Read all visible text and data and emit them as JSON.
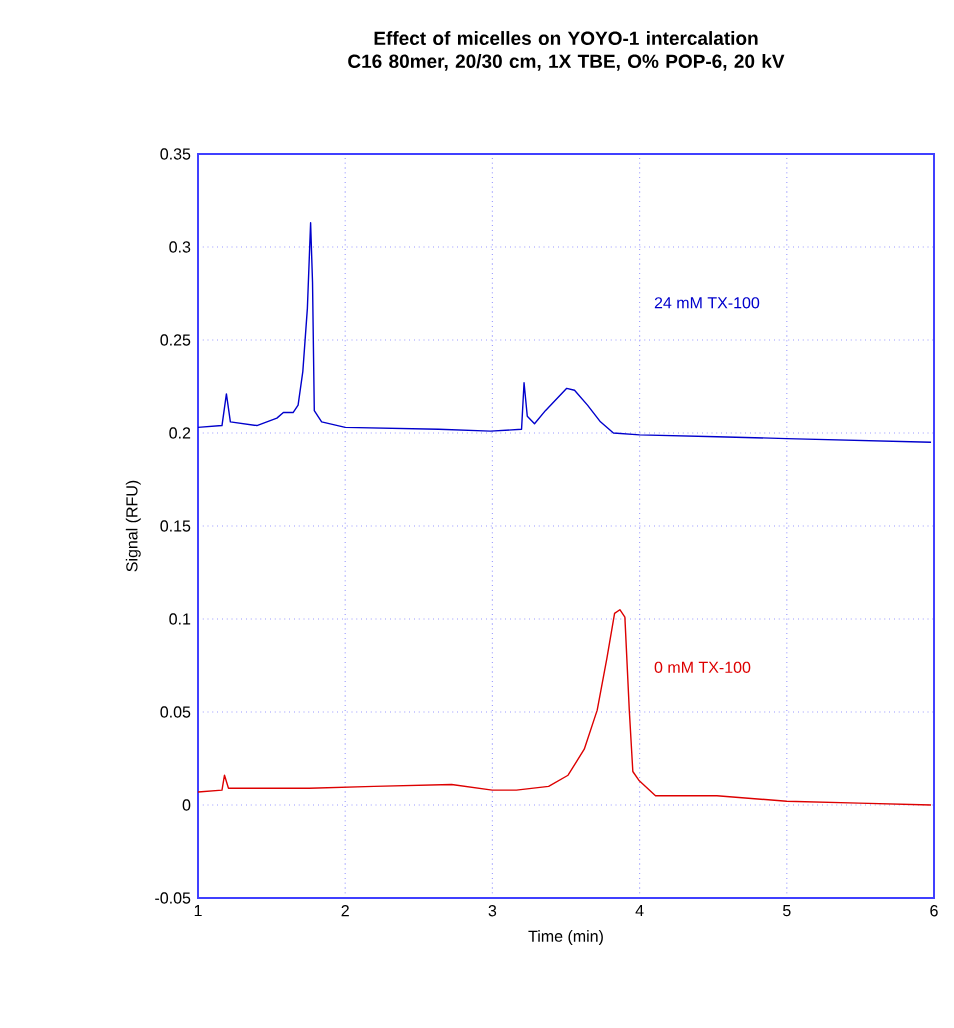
{
  "chart_data": {
    "type": "line",
    "title": "Effect of micelles on YOYO-1 intercalation",
    "subtitle": "C16 80mer, 20/30 cm, 1X TBE, O% POP-6, 20 kV",
    "xlabel": "Time (min)",
    "ylabel": "Signal (RFU)",
    "xlim": [
      1,
      6
    ],
    "ylim": [
      -0.05,
      0.35
    ],
    "xticks": [
      1,
      2,
      3,
      4,
      5,
      6
    ],
    "yticks": [
      -0.05,
      0,
      0.05,
      0.1,
      0.15,
      0.2,
      0.25,
      0.3,
      0.35
    ],
    "grid": true,
    "marker": "none",
    "line_style": "solid",
    "series": [
      {
        "name": "24 mM TX-100",
        "color": "#0000cc",
        "x": [
          1.0,
          1.163,
          1.193,
          1.22,
          1.4,
          1.536,
          1.58,
          1.646,
          1.68,
          1.712,
          1.743,
          1.765,
          1.778,
          1.79,
          1.84,
          2.0,
          2.635,
          2.987,
          3.198,
          3.215,
          3.237,
          3.286,
          3.36,
          3.505,
          3.558,
          3.646,
          3.734,
          3.822,
          4.0,
          4.525,
          5.0,
          5.98
        ],
        "values": [
          0.203,
          0.204,
          0.221,
          0.206,
          0.204,
          0.208,
          0.211,
          0.211,
          0.215,
          0.233,
          0.267,
          0.313,
          0.281,
          0.212,
          0.206,
          0.203,
          0.202,
          0.201,
          0.202,
          0.227,
          0.209,
          0.205,
          0.212,
          0.224,
          0.223,
          0.215,
          0.206,
          0.2,
          0.199,
          0.198,
          0.197,
          0.195
        ]
      },
      {
        "name": "0 mM TX-100",
        "color": "#dd0000",
        "x": [
          1.0,
          1.163,
          1.18,
          1.207,
          1.756,
          2.196,
          2.723,
          2.999,
          3.163,
          3.382,
          3.514,
          3.624,
          3.712,
          3.778,
          3.83,
          3.866,
          3.9,
          3.93,
          3.954,
          3.998,
          4.108,
          4.525,
          5.0,
          5.49,
          5.98
        ],
        "values": [
          0.007,
          0.008,
          0.016,
          0.009,
          0.009,
          0.01,
          0.011,
          0.008,
          0.008,
          0.01,
          0.016,
          0.03,
          0.051,
          0.079,
          0.103,
          0.105,
          0.101,
          0.051,
          0.018,
          0.013,
          0.005,
          0.005,
          0.002,
          0.001,
          0.0
        ]
      }
    ]
  }
}
